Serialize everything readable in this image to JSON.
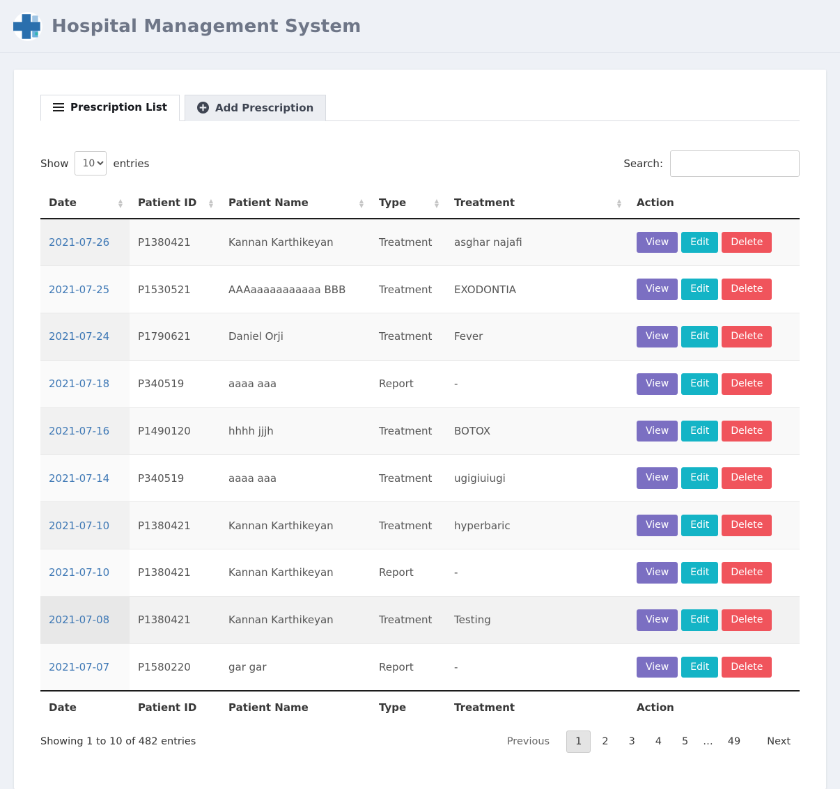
{
  "header": {
    "title": "Hospital Management System"
  },
  "tabs": [
    {
      "label": "Prescription List",
      "active": true
    },
    {
      "label": "Add Prescription",
      "active": false
    }
  ],
  "controls": {
    "show_label": "Show",
    "entries_value": "10",
    "entries_label": "entries",
    "search_label": "Search:",
    "search_value": ""
  },
  "table": {
    "columns": [
      {
        "label": "Date",
        "sortable": true
      },
      {
        "label": "Patient ID",
        "sortable": true
      },
      {
        "label": "Patient Name",
        "sortable": true
      },
      {
        "label": "Type",
        "sortable": true
      },
      {
        "label": "Treatment",
        "sortable": true
      },
      {
        "label": "Action",
        "sortable": false
      }
    ],
    "action_buttons": [
      "View",
      "Edit",
      "Delete"
    ],
    "hover_row_index": 8,
    "rows": [
      {
        "date": "2021-07-26",
        "patient_id": "P1380421",
        "patient_name": "Kannan Karthikeyan",
        "type": "Treatment",
        "treatment": "asghar najafi"
      },
      {
        "date": "2021-07-25",
        "patient_id": "P1530521",
        "patient_name": "AAAaaaaaaaaaaa BBB",
        "type": "Treatment",
        "treatment": "EXODONTIA"
      },
      {
        "date": "2021-07-24",
        "patient_id": "P1790621",
        "patient_name": "Daniel Orji",
        "type": "Treatment",
        "treatment": "Fever"
      },
      {
        "date": "2021-07-18",
        "patient_id": "P340519",
        "patient_name": "aaaa aaa",
        "type": "Report",
        "treatment": "-"
      },
      {
        "date": "2021-07-16",
        "patient_id": "P1490120",
        "patient_name": "hhhh jjjh",
        "type": "Treatment",
        "treatment": "BOTOX"
      },
      {
        "date": "2021-07-14",
        "patient_id": "P340519",
        "patient_name": "aaaa aaa",
        "type": "Treatment",
        "treatment": "ugigiuiugi"
      },
      {
        "date": "2021-07-10",
        "patient_id": "P1380421",
        "patient_name": "Kannan Karthikeyan",
        "type": "Treatment",
        "treatment": "hyperbaric"
      },
      {
        "date": "2021-07-10",
        "patient_id": "P1380421",
        "patient_name": "Kannan Karthikeyan",
        "type": "Report",
        "treatment": "-"
      },
      {
        "date": "2021-07-08",
        "patient_id": "P1380421",
        "patient_name": "Kannan Karthikeyan",
        "type": "Treatment",
        "treatment": "Testing"
      },
      {
        "date": "2021-07-07",
        "patient_id": "P1580220",
        "patient_name": "gar gar",
        "type": "Report",
        "treatment": "-"
      }
    ]
  },
  "footer": {
    "info": "Showing 1 to 10 of 482 entries",
    "pagination": {
      "previous_label": "Previous",
      "pages": [
        "1",
        "2",
        "3",
        "4",
        "5",
        "…",
        "49"
      ],
      "current_page": "1",
      "next_label": "Next"
    }
  },
  "colors": {
    "view_button": "#7b6fc2",
    "edit_button": "#14b4c6",
    "delete_button": "#f0545c",
    "link": "#3e78b5",
    "logo_blue": "#2a6fad",
    "logo_light_blue": "#6cb0dd"
  }
}
